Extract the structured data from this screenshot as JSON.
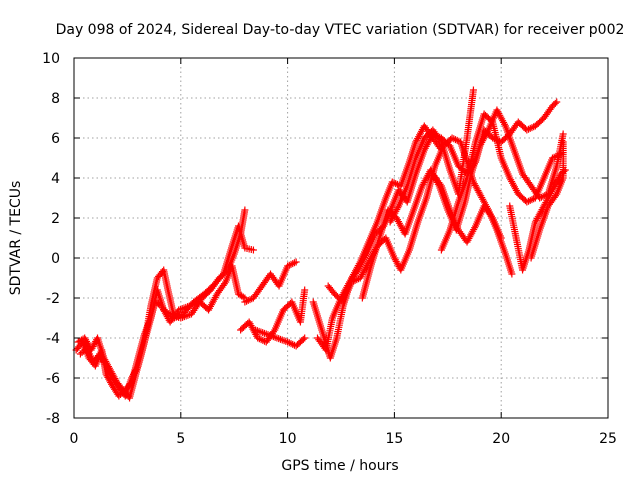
{
  "chart_data": {
    "type": "scatter",
    "title": "Day 098 of 2024, Sidereal Day-to-day VTEC variation (SDTVAR) for receiver p002",
    "xlabel": "GPS time / hours",
    "ylabel": "SDTVAR / TECUs",
    "xlim": [
      0,
      25
    ],
    "ylim": [
      -8,
      10
    ],
    "xticks": [
      "0",
      "5",
      "10",
      "15",
      "20",
      "25"
    ],
    "yticks": [
      "-8",
      "-6",
      "-4",
      "-2",
      "0",
      "2",
      "4",
      "6",
      "8",
      "10"
    ],
    "grid": true,
    "marker": "+",
    "series": [
      {
        "color": "#ff0000",
        "tracks": [
          [
            [
              0.1,
              -4.6
            ],
            [
              0.4,
              -4.2
            ],
            [
              0.7,
              -5.0
            ],
            [
              1.0,
              -5.4
            ],
            [
              1.3,
              -4.6
            ],
            [
              1.5,
              -5.8
            ],
            [
              1.8,
              -6.4
            ],
            [
              2.1,
              -6.9
            ],
            [
              2.4,
              -6.6
            ],
            [
              2.7,
              -6.2
            ],
            [
              3.0,
              -5.0
            ],
            [
              3.3,
              -3.8
            ],
            [
              3.6,
              -3.0
            ],
            [
              3.9,
              -1.6
            ],
            [
              4.2,
              -2.6
            ],
            [
              4.6,
              -2.9
            ],
            [
              5.0,
              -3.0
            ],
            [
              5.5,
              -2.8
            ],
            [
              6.0,
              -2.0
            ],
            [
              6.4,
              -1.6
            ],
            [
              6.8,
              -1.0
            ],
            [
              7.2,
              -0.6
            ],
            [
              7.5,
              0.2
            ],
            [
              7.8,
              1.2
            ],
            [
              8.0,
              2.4
            ]
          ],
          [
            [
              0.3,
              -4.8
            ],
            [
              0.6,
              -4.5
            ],
            [
              0.9,
              -5.2
            ],
            [
              1.2,
              -4.8
            ],
            [
              1.5,
              -5.4
            ],
            [
              1.8,
              -6.0
            ],
            [
              2.1,
              -6.5
            ],
            [
              2.4,
              -6.9
            ],
            [
              2.7,
              -6.0
            ],
            [
              3.0,
              -5.4
            ],
            [
              3.3,
              -4.2
            ],
            [
              3.6,
              -2.4
            ],
            [
              3.9,
              -1.0
            ],
            [
              4.2,
              -0.6
            ],
            [
              4.4,
              -1.6
            ],
            [
              4.7,
              -3.0
            ],
            [
              5.1,
              -2.8
            ],
            [
              5.6,
              -2.2
            ],
            [
              6.1,
              -1.8
            ],
            [
              6.5,
              -1.4
            ],
            [
              7.0,
              -0.8
            ],
            [
              7.4,
              0.6
            ],
            [
              7.7,
              1.6
            ],
            [
              8.0,
              0.5
            ],
            [
              8.4,
              0.4
            ]
          ],
          [
            [
              0.2,
              -4.2
            ],
            [
              0.5,
              -4.0
            ],
            [
              0.8,
              -4.6
            ],
            [
              1.1,
              -4.0
            ],
            [
              1.4,
              -5.0
            ],
            [
              1.7,
              -5.6
            ],
            [
              2.0,
              -6.2
            ],
            [
              2.3,
              -6.6
            ],
            [
              2.6,
              -7.0
            ],
            [
              2.9,
              -5.8
            ],
            [
              3.2,
              -4.6
            ],
            [
              3.5,
              -3.4
            ],
            [
              3.8,
              -2.2
            ],
            [
              4.1,
              -2.4
            ],
            [
              4.5,
              -3.2
            ],
            [
              4.9,
              -2.6
            ],
            [
              5.4,
              -2.4
            ],
            [
              5.9,
              -2.2
            ],
            [
              6.3,
              -2.6
            ],
            [
              6.7,
              -1.8
            ],
            [
              7.1,
              -1.2
            ],
            [
              7.4,
              -0.4
            ],
            [
              7.7,
              -1.8
            ],
            [
              8.0,
              -2.0
            ]
          ],
          [
            [
              8.0,
              -2.2
            ],
            [
              8.4,
              -2.0
            ],
            [
              8.8,
              -1.4
            ],
            [
              9.2,
              -0.8
            ],
            [
              9.6,
              -1.4
            ],
            [
              10.0,
              -0.4
            ],
            [
              10.4,
              -0.2
            ]
          ],
          [
            [
              7.8,
              -3.6
            ],
            [
              8.2,
              -3.2
            ],
            [
              8.6,
              -4.0
            ],
            [
              9.0,
              -4.2
            ],
            [
              9.4,
              -3.6
            ],
            [
              9.8,
              -2.6
            ],
            [
              10.2,
              -2.2
            ],
            [
              10.6,
              -3.2
            ],
            [
              10.8,
              -1.6
            ]
          ],
          [
            [
              8.5,
              -3.6
            ],
            [
              9.0,
              -3.8
            ],
            [
              9.5,
              -4.0
            ],
            [
              10.0,
              -4.2
            ],
            [
              10.4,
              -4.4
            ],
            [
              10.8,
              -4.0
            ]
          ],
          [
            [
              11.2,
              -2.2
            ],
            [
              11.6,
              -3.6
            ],
            [
              12.0,
              -5.0
            ],
            [
              12.3,
              -4.0
            ],
            [
              12.6,
              -2.4
            ],
            [
              13.0,
              -1.0
            ],
            [
              13.4,
              -0.2
            ],
            [
              13.8,
              0.8
            ],
            [
              14.2,
              1.8
            ],
            [
              14.6,
              3.0
            ],
            [
              14.9,
              3.8
            ],
            [
              15.3,
              3.6
            ],
            [
              15.7,
              4.8
            ],
            [
              16.0,
              5.8
            ],
            [
              16.4,
              6.6
            ],
            [
              16.8,
              6.0
            ],
            [
              17.2,
              5.4
            ]
          ],
          [
            [
              11.4,
              -4.0
            ],
            [
              11.8,
              -4.6
            ],
            [
              12.1,
              -3.0
            ],
            [
              12.5,
              -2.0
            ],
            [
              12.9,
              -1.2
            ],
            [
              13.3,
              -0.6
            ],
            [
              13.7,
              0.2
            ],
            [
              14.1,
              1.2
            ],
            [
              14.5,
              1.6
            ],
            [
              14.9,
              2.6
            ],
            [
              15.2,
              3.4
            ],
            [
              15.6,
              2.8
            ],
            [
              16.0,
              4.2
            ],
            [
              16.4,
              5.4
            ],
            [
              16.8,
              6.2
            ],
            [
              17.2,
              6.0
            ],
            [
              17.6,
              5.6
            ],
            [
              18.0,
              4.6
            ],
            [
              18.4,
              4.2
            ],
            [
              18.8,
              4.8
            ],
            [
              19.2,
              6.4
            ],
            [
              19.6,
              6.0
            ],
            [
              20.0,
              5.8
            ],
            [
              20.4,
              6.2
            ],
            [
              20.8,
              6.8
            ],
            [
              21.2,
              6.4
            ],
            [
              21.6,
              6.6
            ],
            [
              22.0,
              7.0
            ],
            [
              22.4,
              7.6
            ],
            [
              22.6,
              7.8
            ]
          ],
          [
            [
              11.9,
              -1.4
            ],
            [
              12.2,
              -1.8
            ],
            [
              12.6,
              -2.2
            ],
            [
              13.0,
              -1.2
            ],
            [
              13.4,
              -1.0
            ],
            [
              13.8,
              -0.2
            ],
            [
              14.2,
              0.6
            ],
            [
              14.6,
              1.0
            ],
            [
              15.0,
              0.0
            ],
            [
              15.3,
              -0.6
            ],
            [
              15.7,
              0.4
            ],
            [
              16.1,
              1.8
            ],
            [
              16.5,
              3.0
            ],
            [
              16.9,
              4.6
            ],
            [
              17.3,
              5.6
            ],
            [
              17.7,
              6.0
            ],
            [
              18.1,
              5.8
            ],
            [
              18.4,
              4.8
            ],
            [
              18.7,
              3.8
            ],
            [
              19.0,
              3.2
            ],
            [
              19.4,
              2.4
            ],
            [
              19.8,
              1.4
            ],
            [
              20.2,
              0.2
            ],
            [
              20.5,
              -0.8
            ]
          ],
          [
            [
              13.5,
              -2.0
            ],
            [
              13.9,
              -0.4
            ],
            [
              14.3,
              1.0
            ],
            [
              14.7,
              2.4
            ],
            [
              15.1,
              2.0
            ],
            [
              15.5,
              1.2
            ],
            [
              15.9,
              2.4
            ],
            [
              16.3,
              3.6
            ],
            [
              16.7,
              4.4
            ],
            [
              17.1,
              3.6
            ],
            [
              17.5,
              2.4
            ],
            [
              17.9,
              1.4
            ],
            [
              18.3,
              2.8
            ],
            [
              18.6,
              4.2
            ],
            [
              19.0,
              5.6
            ],
            [
              19.4,
              6.4
            ],
            [
              19.8,
              7.4
            ],
            [
              20.2,
              6.6
            ],
            [
              20.6,
              5.4
            ],
            [
              21.0,
              4.2
            ],
            [
              21.4,
              3.6
            ],
            [
              21.8,
              3.0
            ],
            [
              22.2,
              3.2
            ],
            [
              22.6,
              4.6
            ],
            [
              22.9,
              6.2
            ]
          ],
          [
            [
              14.8,
              1.8
            ],
            [
              15.2,
              2.6
            ],
            [
              15.6,
              3.6
            ],
            [
              16.0,
              5.0
            ],
            [
              16.4,
              6.0
            ],
            [
              16.8,
              6.4
            ],
            [
              17.2,
              5.8
            ],
            [
              17.6,
              4.4
            ],
            [
              18.0,
              3.2
            ],
            [
              18.4,
              6.0
            ],
            [
              18.7,
              8.4
            ]
          ],
          [
            [
              16.8,
              4.2
            ],
            [
              17.2,
              3.6
            ],
            [
              17.6,
              2.4
            ],
            [
              18.0,
              1.4
            ],
            [
              18.4,
              0.8
            ],
            [
              18.8,
              1.6
            ],
            [
              19.2,
              2.6
            ],
            [
              19.6,
              2.0
            ],
            [
              20.0,
              1.0
            ]
          ],
          [
            [
              17.2,
              0.4
            ],
            [
              17.6,
              1.4
            ],
            [
              18.0,
              2.8
            ],
            [
              18.4,
              4.0
            ],
            [
              18.8,
              5.8
            ],
            [
              19.2,
              7.2
            ],
            [
              19.6,
              6.8
            ],
            [
              20.0,
              5.0
            ],
            [
              20.4,
              4.0
            ],
            [
              20.8,
              3.2
            ],
            [
              21.2,
              2.8
            ],
            [
              21.6,
              3.0
            ],
            [
              22.0,
              4.0
            ],
            [
              22.4,
              5.0
            ],
            [
              22.8,
              5.2
            ]
          ],
          [
            [
              20.4,
              2.6
            ],
            [
              20.7,
              1.0
            ],
            [
              21.0,
              -0.6
            ],
            [
              21.3,
              0.4
            ],
            [
              21.6,
              1.8
            ],
            [
              22.0,
              2.6
            ],
            [
              22.4,
              3.4
            ],
            [
              22.8,
              4.2
            ],
            [
              23.0,
              4.4
            ]
          ],
          [
            [
              21.4,
              0.0
            ],
            [
              21.8,
              1.4
            ],
            [
              22.2,
              2.6
            ],
            [
              22.6,
              3.2
            ],
            [
              22.9,
              4.0
            ],
            [
              22.9,
              5.8
            ]
          ]
        ]
      }
    ]
  }
}
